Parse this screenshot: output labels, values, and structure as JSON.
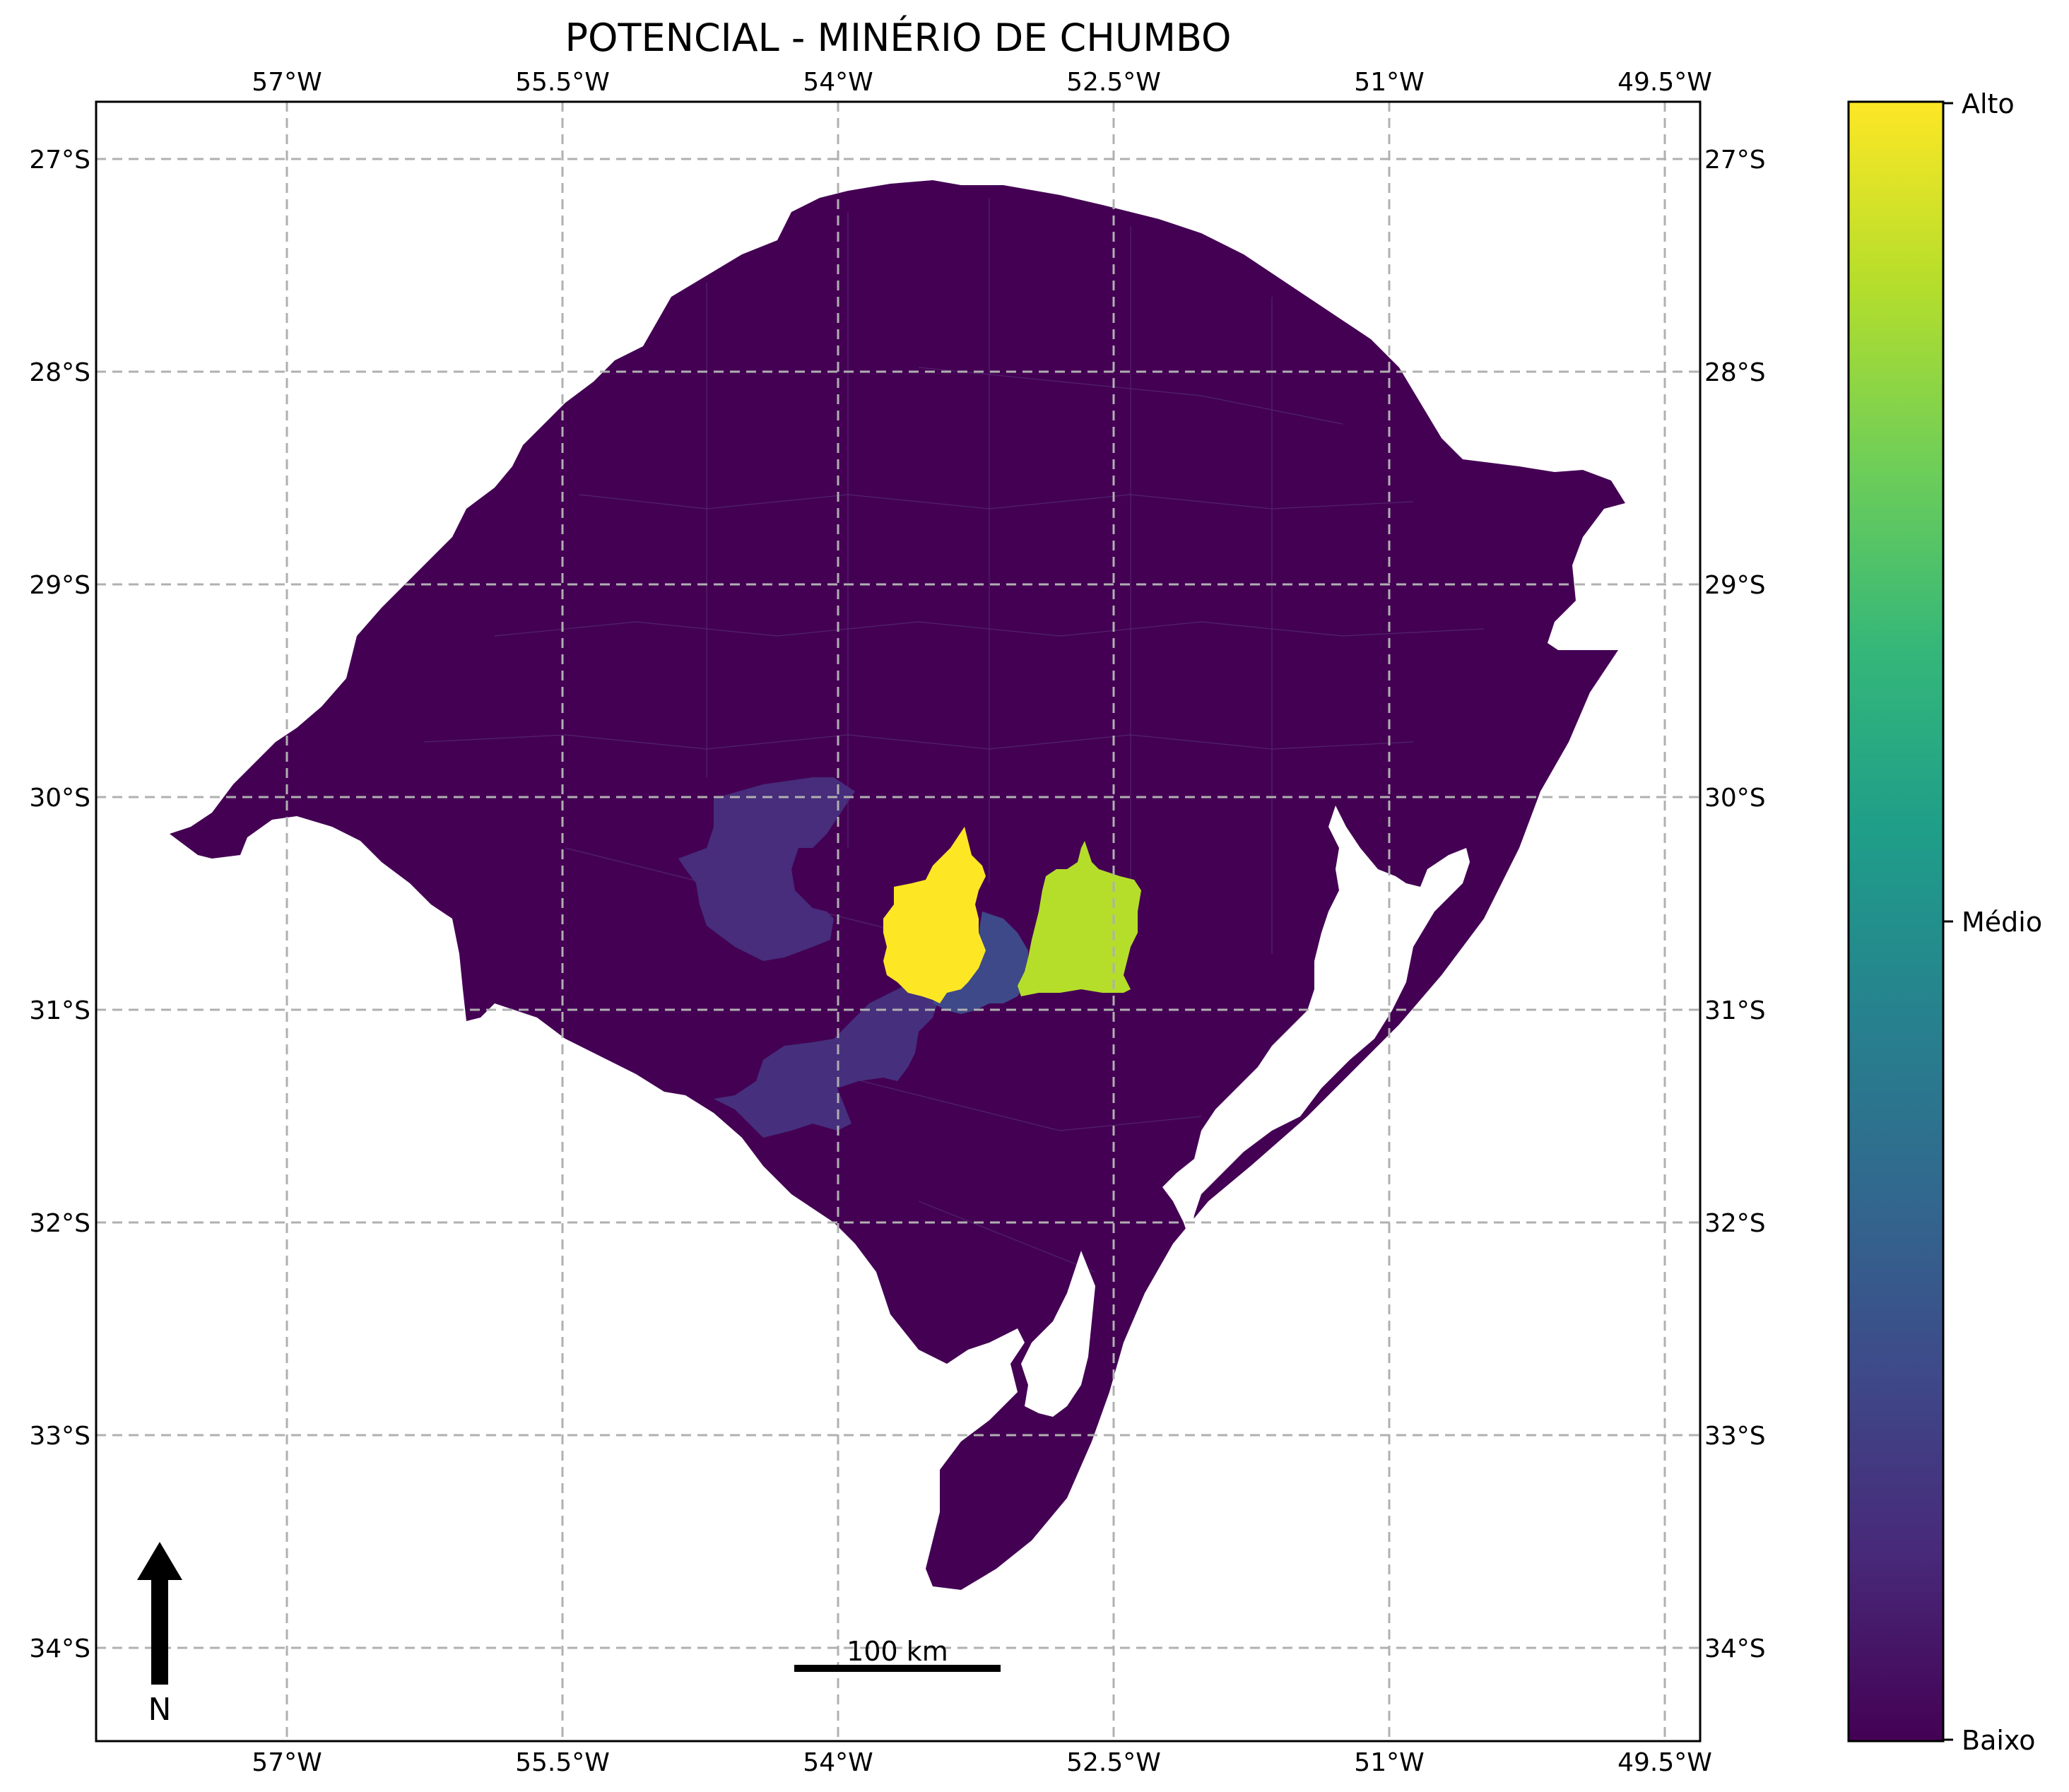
{
  "title": "POTENCIAL - MINÉRIO DE CHUMBO",
  "axes": {
    "lon_ticks": [
      {
        "value": -57.0,
        "label": "57°W"
      },
      {
        "value": -55.5,
        "label": "55.5°W"
      },
      {
        "value": -54.0,
        "label": "54°W"
      },
      {
        "value": -52.5,
        "label": "52.5°W"
      },
      {
        "value": -51.0,
        "label": "51°W"
      },
      {
        "value": -49.5,
        "label": "49.5°W"
      }
    ],
    "lat_ticks": [
      {
        "value": -27,
        "label": "27°S"
      },
      {
        "value": -28,
        "label": "28°S"
      },
      {
        "value": -29,
        "label": "29°S"
      },
      {
        "value": -30,
        "label": "30°S"
      },
      {
        "value": -31,
        "label": "31°S"
      },
      {
        "value": -32,
        "label": "32°S"
      },
      {
        "value": -33,
        "label": "33°S"
      },
      {
        "value": -34,
        "label": "34°S"
      }
    ],
    "gridlines": true
  },
  "colorbar": {
    "colormap": "viridis",
    "labels": {
      "top": "Alto",
      "middle": "Médio",
      "bottom": "Baixo"
    },
    "stops": [
      "#440154",
      "#482878",
      "#3e4989",
      "#31688e",
      "#26828e",
      "#1f9e89",
      "#35b779",
      "#6ece58",
      "#b5de2b",
      "#fde725"
    ]
  },
  "north_arrow": {
    "label": "N"
  },
  "scale_bar": {
    "label": "100 km"
  },
  "regions": [
    {
      "name": "background-municipalities",
      "level": "Baixo",
      "color": "#440154"
    },
    {
      "name": "region-high",
      "level": "Alto",
      "color": "#fde725"
    },
    {
      "name": "region-high-medium",
      "color": "#b5de2b"
    },
    {
      "name": "region-low-medium",
      "color": "#3e4989"
    },
    {
      "name": "region-low-a",
      "color": "#472d7b"
    },
    {
      "name": "region-low-b",
      "color": "#46307e"
    }
  ]
}
